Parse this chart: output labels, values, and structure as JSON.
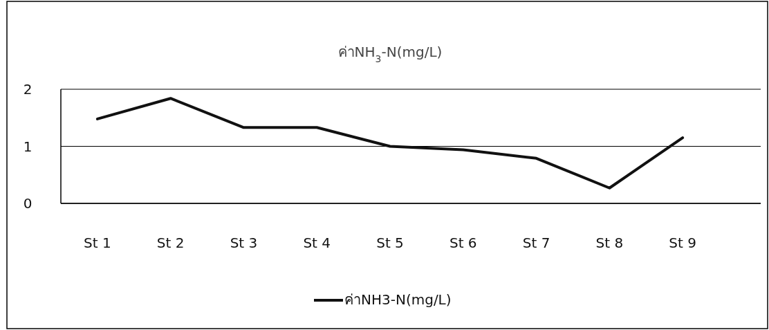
{
  "chart_data": {
    "type": "line",
    "title": "ค่าNH$_{3}$-N(mg/L)",
    "categories": [
      "St 1",
      "St 2",
      "St 3",
      "St 4",
      "St 5",
      "St 6",
      "St 7",
      "St 8",
      "St 9"
    ],
    "series": [
      {
        "name": "ค่าNH3-N(mg/L)",
        "color": "#111111",
        "values": [
          1.48,
          1.84,
          1.33,
          1.33,
          1.0,
          0.94,
          0.79,
          0.27,
          1.15
        ]
      }
    ],
    "ylim": [
      0,
      2
    ],
    "yticks": [
      0,
      1,
      2
    ],
    "grid": "y",
    "legend": "bottom",
    "marker": "none",
    "line_style": "solid"
  }
}
